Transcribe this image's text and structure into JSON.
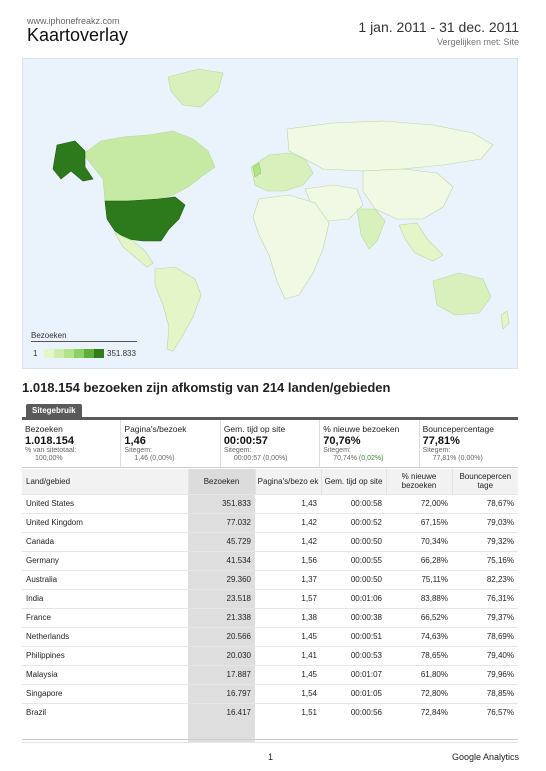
{
  "header": {
    "site": "www.iphonefreakz.com",
    "title": "Kaartoverlay",
    "date_range": "1 jan. 2011 - 31 dec. 2011",
    "compare": "Vergelijken met: Site"
  },
  "map": {
    "legend_title": "Bezoeken",
    "legend_min": "1",
    "legend_max": "351.833",
    "legend_colors": [
      "#e4f5c8",
      "#cdeeab",
      "#b2e38b",
      "#8ccf62",
      "#5fae3a",
      "#2f7d1c"
    ],
    "colors": {
      "water": "#eaf2fb",
      "land_low": "#f0f9e4",
      "land_mid": "#d8f0bc",
      "canada": "#c6eaa3",
      "usa": "#2c7a1c",
      "border": "#b9d8a0"
    }
  },
  "summary": {
    "heading": "1.018.154 bezoeken zijn afkomstig van 214 landen/gebieden",
    "tab": "Sitegebruik",
    "metrics": [
      {
        "label": "Bezoeken",
        "value": "1.018.154",
        "sub1": "% van sitetotaal:",
        "sub2": "100,00%",
        "sub2_extra": ""
      },
      {
        "label": "Pagina's/bezoek",
        "value": "1,46",
        "sub1": "Sitegem:",
        "sub2": "1,46 (0,00%)",
        "sub2_extra": ""
      },
      {
        "label": "Gem. tijd op site",
        "value": "00:00:57",
        "sub1": "Sitegem:",
        "sub2": "00:00:57 (0,00%)",
        "sub2_extra": ""
      },
      {
        "label": "% nieuwe bezoeken",
        "value": "70,76%",
        "sub1": "Sitegem:",
        "sub2": "70,74%",
        "sub2_extra": "(0,02%)"
      },
      {
        "label": "Bouncepercentage",
        "value": "77,81%",
        "sub1": "Sitegem:",
        "sub2": "77,81% (0,00%)",
        "sub2_extra": ""
      }
    ]
  },
  "table": {
    "headers": {
      "country": "Land/gebied",
      "visits": "Bezoeken",
      "pps": "Pagina's/bezo ek",
      "time": "Gem. tijd op site",
      "new": "% nieuwe bezoeken",
      "bounce": "Bouncepercen tage"
    },
    "rows": [
      {
        "country": "United States",
        "visits": "351.833",
        "pps": "1,43",
        "time": "00:00:58",
        "new": "72,00%",
        "bounce": "78,67%"
      },
      {
        "country": "United Kingdom",
        "visits": "77.032",
        "pps": "1,42",
        "time": "00:00:52",
        "new": "67,15%",
        "bounce": "79,03%"
      },
      {
        "country": "Canada",
        "visits": "45.729",
        "pps": "1,42",
        "time": "00:00:50",
        "new": "70,34%",
        "bounce": "79,32%"
      },
      {
        "country": "Germany",
        "visits": "41.534",
        "pps": "1,56",
        "time": "00:00:55",
        "new": "66,28%",
        "bounce": "75,16%"
      },
      {
        "country": "Australia",
        "visits": "29.360",
        "pps": "1,37",
        "time": "00:00:50",
        "new": "75,11%",
        "bounce": "82,23%"
      },
      {
        "country": "India",
        "visits": "23.518",
        "pps": "1,57",
        "time": "00:01:06",
        "new": "83,88%",
        "bounce": "76,31%"
      },
      {
        "country": "France",
        "visits": "21.338",
        "pps": "1,38",
        "time": "00:00:38",
        "new": "66,52%",
        "bounce": "79,37%"
      },
      {
        "country": "Netherlands",
        "visits": "20.566",
        "pps": "1,45",
        "time": "00:00:51",
        "new": "74,63%",
        "bounce": "78,69%"
      },
      {
        "country": "Philippines",
        "visits": "20.030",
        "pps": "1,41",
        "time": "00:00:53",
        "new": "78,65%",
        "bounce": "79,40%"
      },
      {
        "country": "Malaysia",
        "visits": "17.887",
        "pps": "1,45",
        "time": "00:01:07",
        "new": "61,80%",
        "bounce": "79,96%"
      },
      {
        "country": "Singapore",
        "visits": "16.797",
        "pps": "1,54",
        "time": "00:01:05",
        "new": "72,80%",
        "bounce": "78,85%"
      },
      {
        "country": "Brazil",
        "visits": "16.417",
        "pps": "1,51",
        "time": "00:00:56",
        "new": "72,84%",
        "bounce": "76,57%"
      }
    ]
  },
  "footer": {
    "page_number": "1",
    "brand": "Google Analytics"
  }
}
